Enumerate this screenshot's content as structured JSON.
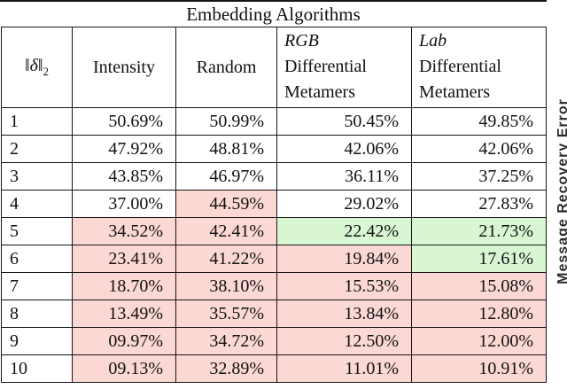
{
  "title": "Embedding Algorithms",
  "side_label": "Message Recovery Error",
  "colors": {
    "red_highlight": "#fbd8d4",
    "green_highlight": "#d8f6d2",
    "border": "#151515"
  },
  "table": {
    "columns": [
      {
        "norm_open": "‖",
        "norm_symbol": "δ",
        "norm_close": "‖",
        "norm_sub": "2"
      },
      {
        "label": "Intensity"
      },
      {
        "label": "Random"
      },
      {
        "math": "RGB",
        "label_lines": [
          "Differential",
          "Metamers"
        ]
      },
      {
        "math": "Lab",
        "label_lines": [
          "Differential",
          "Metamers"
        ]
      }
    ],
    "rows": [
      {
        "norm": "1",
        "values": [
          "50.69%",
          "50.99%",
          "50.45%",
          "49.85%"
        ],
        "highlights": [
          "none",
          "none",
          "none",
          "none"
        ]
      },
      {
        "norm": "2",
        "values": [
          "47.92%",
          "48.81%",
          "42.06%",
          "42.06%"
        ],
        "highlights": [
          "none",
          "none",
          "none",
          "none"
        ]
      },
      {
        "norm": "3",
        "values": [
          "43.85%",
          "46.97%",
          "36.11%",
          "37.25%"
        ],
        "highlights": [
          "none",
          "none",
          "none",
          "none"
        ]
      },
      {
        "norm": "4",
        "values": [
          "37.00%",
          "44.59%",
          "29.02%",
          "27.83%"
        ],
        "highlights": [
          "none",
          "red",
          "none",
          "none"
        ]
      },
      {
        "norm": "5",
        "values": [
          "34.52%",
          "42.41%",
          "22.42%",
          "21.73%"
        ],
        "highlights": [
          "red",
          "red",
          "green",
          "green"
        ]
      },
      {
        "norm": "6",
        "values": [
          "23.41%",
          "41.22%",
          "19.84%",
          "17.61%"
        ],
        "highlights": [
          "red",
          "red",
          "red",
          "green"
        ]
      },
      {
        "norm": "7",
        "values": [
          "18.70%",
          "38.10%",
          "15.53%",
          "15.08%"
        ],
        "highlights": [
          "red",
          "red",
          "red",
          "red"
        ]
      },
      {
        "norm": "8",
        "values": [
          "13.49%",
          "35.57%",
          "13.84%",
          "12.80%"
        ],
        "highlights": [
          "red",
          "red",
          "red",
          "red"
        ]
      },
      {
        "norm": "9",
        "values": [
          "09.97%",
          "34.72%",
          "12.50%",
          "12.00%"
        ],
        "highlights": [
          "red",
          "red",
          "red",
          "red"
        ]
      },
      {
        "norm": "10",
        "values": [
          "09.13%",
          "32.89%",
          "11.01%",
          "10.91%"
        ],
        "highlights": [
          "red",
          "red",
          "red",
          "red"
        ]
      }
    ]
  }
}
